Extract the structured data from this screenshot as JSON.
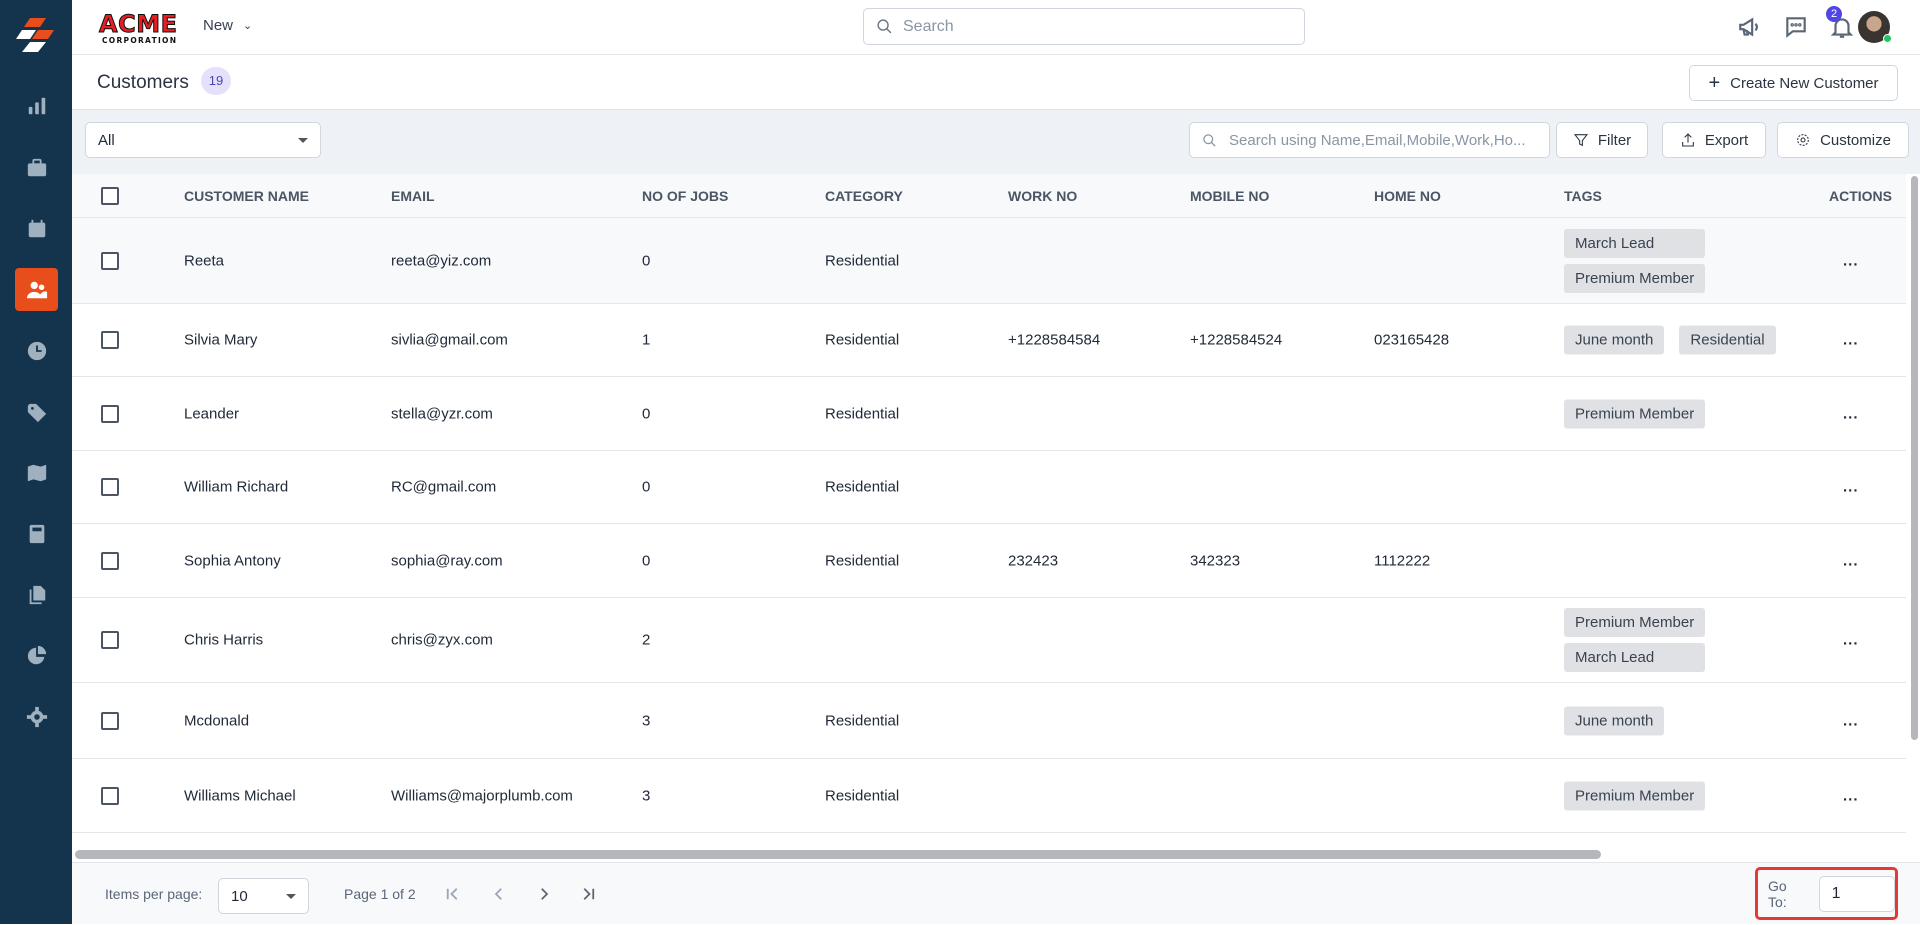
{
  "sidebar": {
    "items": [
      {
        "icon": "bar-chart-icon"
      },
      {
        "icon": "briefcase-icon"
      },
      {
        "icon": "calendar-icon"
      },
      {
        "icon": "users-icon",
        "active": true
      },
      {
        "icon": "clock-icon"
      },
      {
        "icon": "tag-icon"
      },
      {
        "icon": "map-icon"
      },
      {
        "icon": "calculator-icon"
      },
      {
        "icon": "documents-icon"
      },
      {
        "icon": "pie-chart-icon"
      },
      {
        "icon": "settings-icon"
      }
    ],
    "active_color": "#e84e1b",
    "bg_color": "#14334d"
  },
  "topbar": {
    "logo_text": "ACME CORPORATION",
    "new_label": "New",
    "search_placeholder": "Search",
    "notification_count": "2"
  },
  "header": {
    "title": "Customers",
    "count": "19",
    "create_label": "Create New Customer"
  },
  "toolbar": {
    "filter_select": "All",
    "search_placeholder": "Search using Name,Email,Mobile,Work,Ho...",
    "filter_label": "Filter",
    "export_label": "Export",
    "customize_label": "Customize"
  },
  "table": {
    "columns": [
      "CUSTOMER NAME",
      "EMAIL",
      "NO OF JOBS",
      "CATEGORY",
      "WORK NO",
      "MOBILE NO",
      "HOME NO",
      "TAGS",
      "ACTIONS"
    ],
    "rows": [
      {
        "name": "Reeta",
        "email": "reeta@yiz.com",
        "jobs": "0",
        "category": "Residential",
        "work": "",
        "mobile": "",
        "home": "",
        "tags": [
          "March Lead",
          "Premium Member"
        ]
      },
      {
        "name": "Silvia Mary",
        "email": "sivlia@gmail.com",
        "jobs": "1",
        "category": "Residential",
        "work": "+1228584584",
        "mobile": "+1228584524",
        "home": "023165428",
        "tags": [
          "June month",
          "Residential"
        ]
      },
      {
        "name": "Leander",
        "email": "stella@yzr.com",
        "jobs": "0",
        "category": "Residential",
        "work": "",
        "mobile": "",
        "home": "",
        "tags": [
          "Premium Member"
        ]
      },
      {
        "name": "William Richard",
        "email": "RC@gmail.com",
        "jobs": "0",
        "category": "Residential",
        "work": "",
        "mobile": "",
        "home": "",
        "tags": []
      },
      {
        "name": "Sophia Antony",
        "email": "sophia@ray.com",
        "jobs": "0",
        "category": "Residential",
        "work": "232423",
        "mobile": "342323",
        "home": "1112222",
        "tags": []
      },
      {
        "name": "Chris Harris",
        "email": "chris@zyx.com",
        "jobs": "2",
        "category": "",
        "work": "",
        "mobile": "",
        "home": "",
        "tags": [
          "Premium Member",
          "March Lead"
        ]
      },
      {
        "name": "Mcdonald",
        "email": "",
        "jobs": "3",
        "category": "Residential",
        "work": "",
        "mobile": "",
        "home": "",
        "tags": [
          "June month"
        ]
      },
      {
        "name": "Williams Michael",
        "email": "Williams@majorplumb.com",
        "jobs": "3",
        "category": "Residential",
        "work": "",
        "mobile": "",
        "home": "",
        "tags": [
          "Premium Member"
        ]
      }
    ],
    "actions_label": "..."
  },
  "footer": {
    "items_per_page_label": "Items per page:",
    "items_per_page": "10",
    "page_info": "Page 1 of 2",
    "goto_label": "Go To:",
    "goto_value": "1"
  }
}
